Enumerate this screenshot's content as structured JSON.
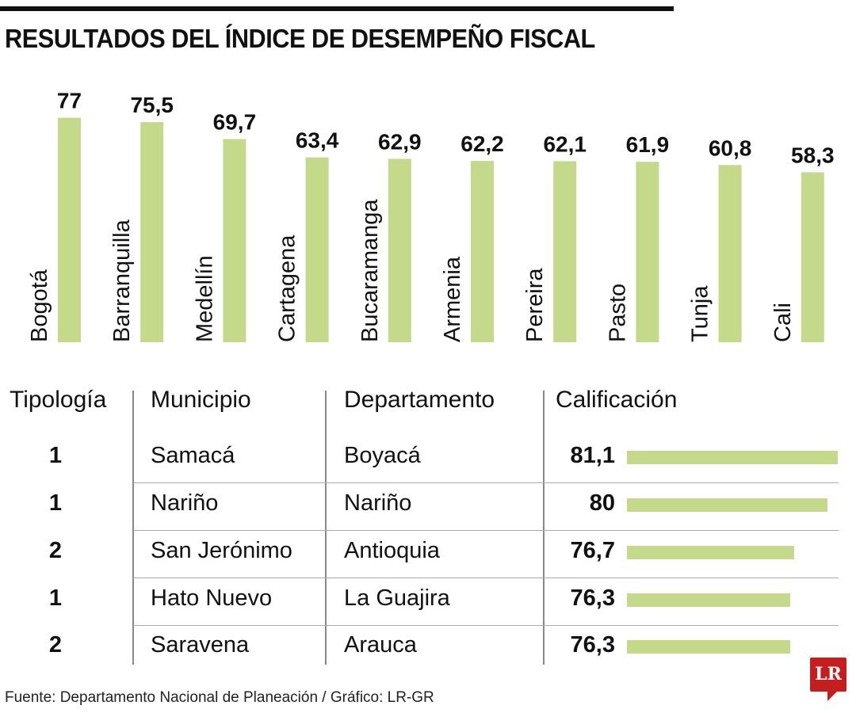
{
  "title": "RESULTADOS DEL ÍNDICE DE DESEMPEÑO FISCAL",
  "chart_data": [
    {
      "type": "bar",
      "orientation": "vertical",
      "categories": [
        "Bogotá",
        "Barranquilla",
        "Medellín",
        "Cartagena",
        "Bucaramanga",
        "Armenia",
        "Pereira",
        "Pasto",
        "Tunja",
        "Cali"
      ],
      "values": [
        77,
        75.5,
        69.7,
        63.4,
        62.9,
        62.2,
        62.1,
        61.9,
        60.8,
        58.3
      ],
      "value_labels": [
        "77",
        "75,5",
        "69,7",
        "63,4",
        "62,9",
        "62,2",
        "62,1",
        "61,9",
        "60,8",
        "58,3"
      ],
      "color": "#c5d98a",
      "grid": false
    },
    {
      "type": "table",
      "columns": [
        "Tipología",
        "Municipio",
        "Departamento",
        "Calificación"
      ],
      "rows": [
        {
          "tipologia": "1",
          "municipio": "Samacá",
          "departamento": "Boyacá",
          "calificacion": 81.1,
          "label": "81,1"
        },
        {
          "tipologia": "1",
          "municipio": "Nariño",
          "departamento": "Nariño",
          "calificacion": 80,
          "label": "80"
        },
        {
          "tipologia": "2",
          "municipio": "San Jerónimo",
          "departamento": "Antioquia",
          "calificacion": 76.7,
          "label": "76,7"
        },
        {
          "tipologia": "1",
          "municipio": "Hato Nuevo",
          "departamento": "La Guajira",
          "calificacion": 76.3,
          "label": "76,3"
        },
        {
          "tipologia": "2",
          "municipio": "Saravena",
          "departamento": "Arauca",
          "calificacion": 76.3,
          "label": "76,3"
        }
      ],
      "bar_color": "#c5d98a"
    }
  ],
  "footer": "Fuente: Departamento Nacional de Planeación / Gráfico: LR-GR",
  "logo": "LR",
  "logo_color": "#c41e1e"
}
